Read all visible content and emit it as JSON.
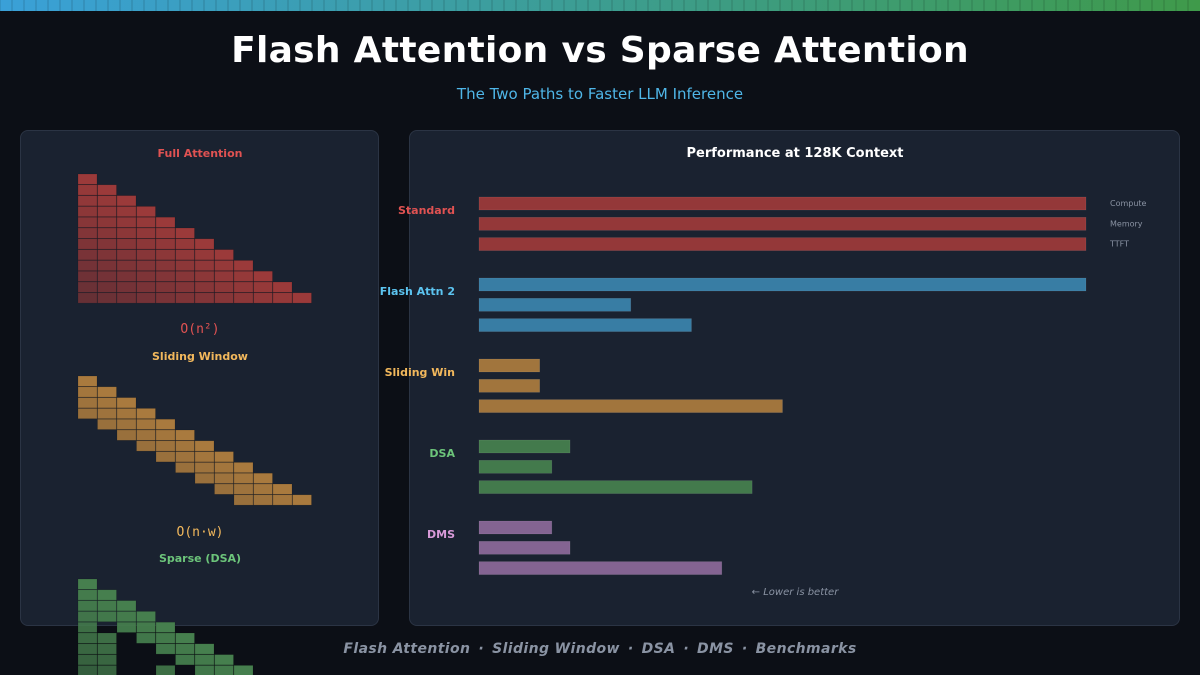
{
  "header": {
    "title": "Flash Attention vs Sparse Attention",
    "subtitle": "The Two Paths to Faster LLM Inference"
  },
  "colors": {
    "red": "#9b3a3a",
    "red_text": "#e05252",
    "blue": "#3a82ab",
    "blue_text": "#5cc4f0",
    "orange": "#a97a3e",
    "orange_text": "#f2b85c",
    "green": "#467f4e",
    "green_text": "#6cc47a",
    "purple": "#8a6898",
    "purple_text": "#d89ad8",
    "panel_bg": "#1a2230"
  },
  "patterns": [
    {
      "name": "Full Attention",
      "complexity": "O(n²)",
      "type": "full",
      "n": 12,
      "color": "red"
    },
    {
      "name": "Sliding Window",
      "complexity": "O(n·w)",
      "type": "sliding",
      "n": 12,
      "window": 4,
      "color": "orange"
    },
    {
      "name": "Sparse (DSA)",
      "complexity": "",
      "type": "sparse",
      "n": 12,
      "color": "green"
    }
  ],
  "chart_data": {
    "type": "bar",
    "title": "Performance at 128K Context",
    "orientation": "horizontal",
    "categories": [
      "Standard",
      "Flash Attn 2",
      "Sliding Win",
      "DSA",
      "DMS"
    ],
    "metrics": [
      "Compute",
      "Memory",
      "TTFT"
    ],
    "category_colors": [
      "red",
      "blue",
      "orange",
      "green",
      "purple"
    ],
    "values": {
      "Standard": {
        "Compute": 100,
        "Memory": 100,
        "TTFT": 100
      },
      "Flash Attn 2": {
        "Compute": 100,
        "Memory": 25,
        "TTFT": 35
      },
      "Sliding Win": {
        "Compute": 10,
        "Memory": 10,
        "TTFT": 50
      },
      "DSA": {
        "Compute": 15,
        "Memory": 12,
        "TTFT": 45
      },
      "DMS": {
        "Compute": 12,
        "Memory": 15,
        "TTFT": 40
      }
    },
    "xlim": [
      0,
      100
    ],
    "note": "← Lower is better"
  },
  "footer": {
    "items": [
      "Flash Attention",
      "Sliding Window",
      "DSA",
      "DMS",
      "Benchmarks"
    ],
    "separator": "·"
  }
}
